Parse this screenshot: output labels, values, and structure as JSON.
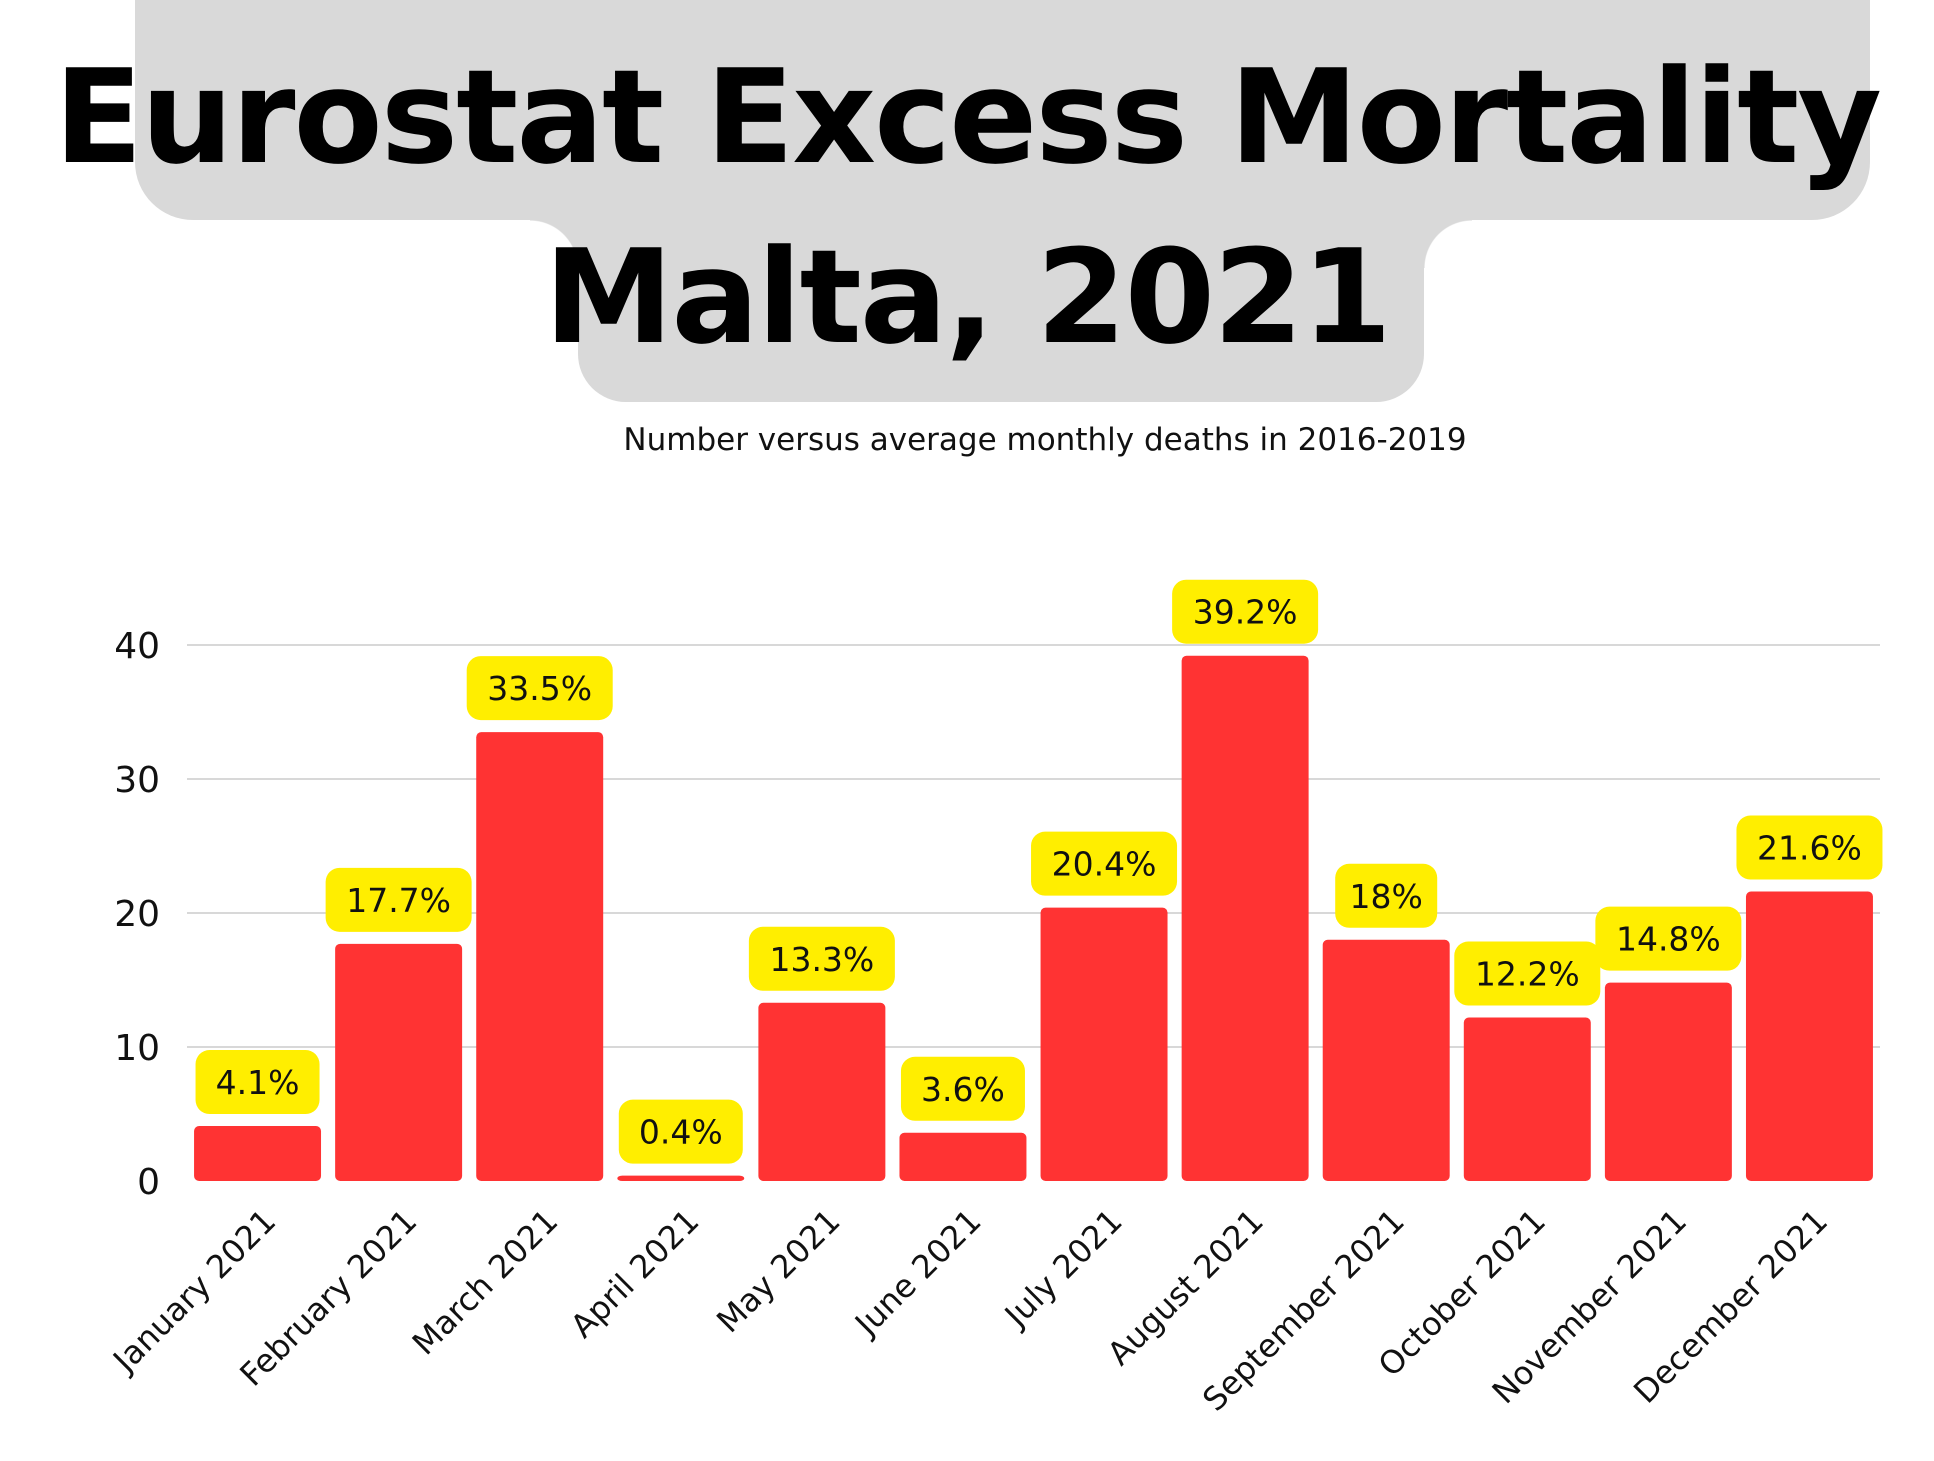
{
  "title_line1": "Eurostat Excess Mortality",
  "title_line2": "Malta, 2021",
  "subtitle": "Number versus average monthly deaths in 2016-2019",
  "colors": {
    "bar": "#ff3333",
    "label_bg": "#ffee00",
    "title_bg": "#d9d9d9",
    "grid": "#cccccc"
  },
  "chart_data": {
    "type": "bar",
    "title": "Eurostat Excess Mortality Malta, 2021",
    "subtitle": "Number versus average monthly deaths in 2016-2019",
    "xlabel": "",
    "ylabel": "",
    "ylim": [
      0,
      40
    ],
    "yticks": [
      0,
      10,
      20,
      30,
      40
    ],
    "grid": true,
    "categories": [
      "January 2021",
      "February 2021",
      "March 2021",
      "April 2021",
      "May 2021",
      "June 2021",
      "July 2021",
      "August 2021",
      "September 2021",
      "October 2021",
      "November 2021",
      "December 2021"
    ],
    "values": [
      4.1,
      17.7,
      33.5,
      0.4,
      13.3,
      3.6,
      20.4,
      39.2,
      18,
      12.2,
      14.8,
      21.6
    ],
    "data_labels": [
      "4.1%",
      "17.7%",
      "33.5%",
      "0.4%",
      "13.3%",
      "3.6%",
      "20.4%",
      "39.2%",
      "18%",
      "12.2%",
      "14.8%",
      "21.6%"
    ]
  }
}
